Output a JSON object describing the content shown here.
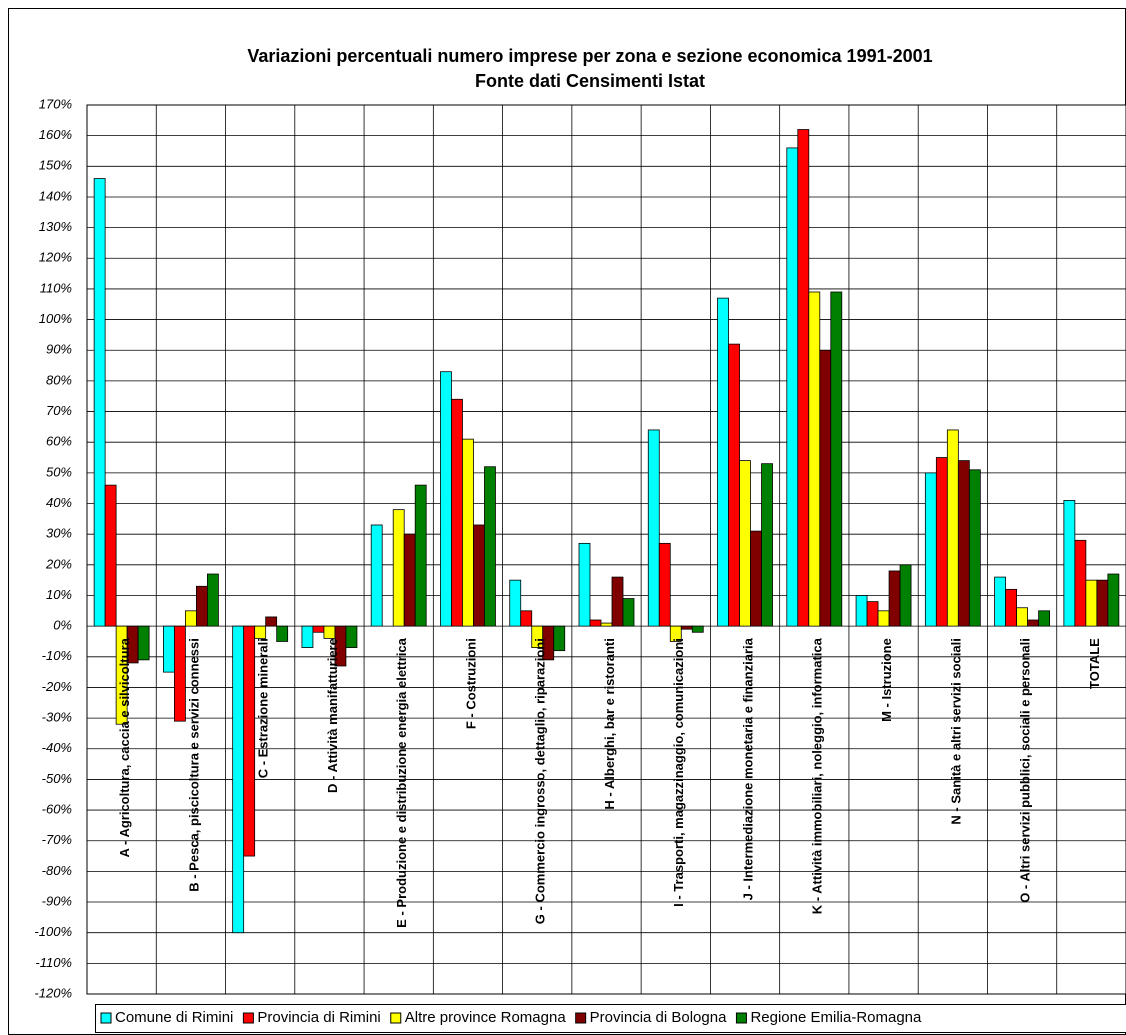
{
  "chart_data": {
    "type": "bar",
    "title": "Variazioni percentuali numero imprese per zona e sezione economica 1991-2001",
    "subtitle": "Fonte dati Censimenti Istat",
    "categories": [
      "A - Agricoltura, caccia e silvicoltura",
      "B - Pesca, piscicoltura e servizi connessi",
      "C - Estrazione minerali",
      "D - Attività manifatturiere",
      "E - Produzione e distribuzione energia elettrica",
      "F - Costruzioni",
      "G - Commercio ingrosso, dettaglio, riparazioni",
      "H - Alberghi, bar e ristoranti",
      "I - Trasporti, magazzinaggio, comunicazioni",
      "J - Intermediazione monetaria e finanziaria",
      "K - Attività immobiliari, noleggio, informatica",
      "M - Istruzione",
      "N - Sanità e altri servizi sociali",
      "O - Altri servizi pubblici, sociali e personali",
      "TOTALE"
    ],
    "series": [
      {
        "name": "Comune di Rimini",
        "color": "#00ffff",
        "values": [
          146,
          -15,
          -100,
          -7,
          33,
          83,
          15,
          27,
          64,
          107,
          156,
          10,
          50,
          16,
          41
        ]
      },
      {
        "name": "Provincia di Rimini",
        "color": "#ff0000",
        "values": [
          46,
          -31,
          -75,
          -2,
          0,
          74,
          5,
          2,
          27,
          92,
          162,
          8,
          55,
          12,
          28
        ]
      },
      {
        "name": "Altre province Romagna",
        "color": "#ffff00",
        "values": [
          -32,
          5,
          -4,
          -4,
          38,
          61,
          -7,
          1,
          -5,
          54,
          109,
          5,
          64,
          6,
          15
        ]
      },
      {
        "name": "Provincia di Bologna",
        "color": "#800000",
        "values": [
          -12,
          13,
          3,
          -13,
          30,
          33,
          -11,
          16,
          -1,
          31,
          90,
          18,
          54,
          2,
          15
        ]
      },
      {
        "name": "Regione Emilia-Romagna",
        "color": "#008000",
        "values": [
          -11,
          17,
          -5,
          -7,
          46,
          52,
          -8,
          9,
          -2,
          53,
          109,
          20,
          51,
          5,
          17
        ]
      }
    ],
    "ylim": [
      -120,
      170
    ],
    "yticks": [
      {
        "value": 170,
        "label": "170%"
      },
      {
        "value": 160,
        "label": "160%"
      },
      {
        "value": 150,
        "label": "150%"
      },
      {
        "value": 140,
        "label": "140%"
      },
      {
        "value": 130,
        "label": "130%"
      },
      {
        "value": 120,
        "label": "120%"
      },
      {
        "value": 110,
        "label": "110%"
      },
      {
        "value": 100,
        "label": "100%"
      },
      {
        "value": 90,
        "label": "90%"
      },
      {
        "value": 80,
        "label": "80%"
      },
      {
        "value": 70,
        "label": "70%"
      },
      {
        "value": 60,
        "label": "60%"
      },
      {
        "value": 50,
        "label": "50%"
      },
      {
        "value": 40,
        "label": "40%"
      },
      {
        "value": 30,
        "label": "30%"
      },
      {
        "value": 20,
        "label": "20%"
      },
      {
        "value": 10,
        "label": "10%"
      },
      {
        "value": 0,
        "label": "0%"
      },
      {
        "value": -10,
        "label": "-10%"
      },
      {
        "value": -20,
        "label": "-20%"
      },
      {
        "value": -30,
        "label": "-30%"
      },
      {
        "value": -40,
        "label": "-40%"
      },
      {
        "value": -50,
        "label": "-50%"
      },
      {
        "value": -60,
        "label": "-60%"
      },
      {
        "value": -70,
        "label": "-70%"
      },
      {
        "value": -80,
        "label": "-80%"
      },
      {
        "value": -90,
        "label": "-90%"
      },
      {
        "value": -100,
        "label": "-100%"
      },
      {
        "value": -110,
        "label": "-110%"
      },
      {
        "value": -120,
        "label": "-120%"
      }
    ],
    "grid": true,
    "legend": "bottom"
  }
}
